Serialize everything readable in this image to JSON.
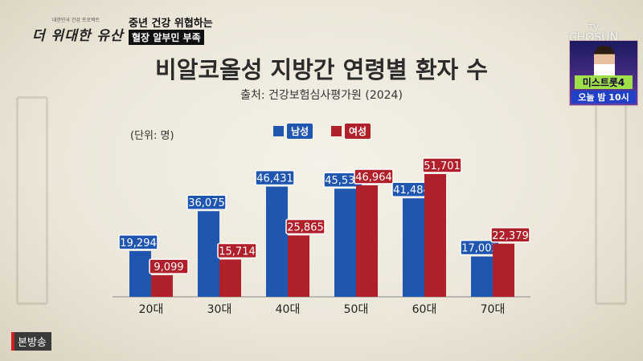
{
  "header": {
    "logo_small": "대한민국 건강 프로젝트",
    "logo": "더 위대한 유산",
    "caption_line1": "중년 건강 위협하는",
    "caption_line2": "혈장 알부민 부족"
  },
  "channel": {
    "tv": "TV",
    "name": "CHOSUN",
    "promo_show": "미스트롯4",
    "promo_time": "오늘 밤 10시"
  },
  "broadcast_badge": "본방송",
  "colors": {
    "male": "#1f56b0",
    "female": "#b0202a"
  },
  "chart_data": {
    "type": "bar",
    "title": "비알코올성 지방간 연령별 환자 수",
    "source": "출처: 건강보험심사평가원 (2024)",
    "unit": "(단위: 명)",
    "categories": [
      "20대",
      "30대",
      "40대",
      "50대",
      "60대",
      "70대"
    ],
    "series": [
      {
        "name": "남성",
        "values": [
          19294,
          36075,
          46431,
          45539,
          41484,
          17002
        ],
        "labels": [
          "19,294",
          "36,075",
          "46,431",
          "45,539",
          "41,484",
          "17,002"
        ]
      },
      {
        "name": "여성",
        "values": [
          9099,
          15714,
          25865,
          46964,
          51701,
          22379
        ],
        "labels": [
          "9,099",
          "15,714",
          "25,865",
          "46,964",
          "51,701",
          "22,379"
        ]
      }
    ],
    "ylim": [
      0,
      60000
    ],
    "legend": "top-center",
    "grid": false
  }
}
